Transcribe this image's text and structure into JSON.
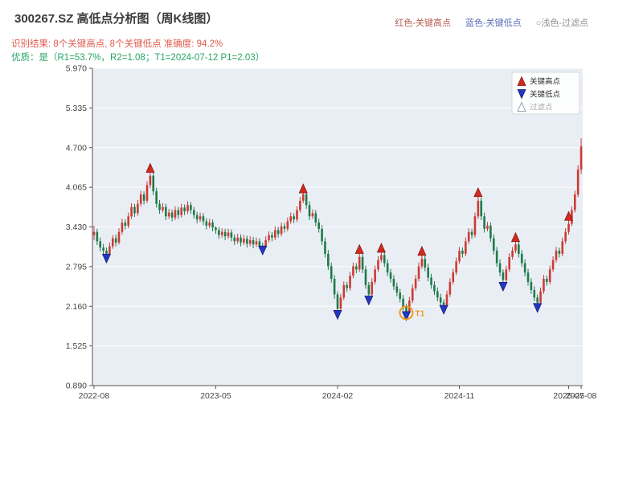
{
  "header": {
    "title": "300267.SZ 高低点分析图（周K线图）",
    "legend_top": [
      {
        "label": "红色-关键高点",
        "color": "#b85c52"
      },
      {
        "label": "蓝色-关键低点",
        "color": "#5a6fb5"
      },
      {
        "label": "○浅色-过滤点",
        "color": "#8f8f8f"
      }
    ],
    "result_line": "识别结果: 8个关键高点, 8个关键低点  准确度: 94.2%",
    "result_color": "#e05c4f",
    "quality_line": "优质：是（R1=53.7%，R2=1.08；T1=2024-07-12 P1=2.03）",
    "quality_color": "#27a567"
  },
  "analysis": {
    "key_high_count": 8,
    "key_low_count": 8,
    "accuracy_pct": 94.2,
    "r1": "53.7%",
    "r2": 1.08,
    "t1_date": "2024-07-12",
    "p1": 2.03
  },
  "chart_data": {
    "type": "candlestick",
    "title": "300267.SZ 周K线",
    "start_date": "2022-08-05",
    "interval_days": 7,
    "ylim": [
      0.89,
      5.97
    ],
    "ytick_labels": [
      "0.890",
      "1.525",
      "2.160",
      "2.795",
      "3.430",
      "4.065",
      "4.700",
      "5.335",
      "5.970"
    ],
    "yticks": [
      0.89,
      1.525,
      2.16,
      2.795,
      3.43,
      4.065,
      4.7,
      5.335,
      5.97
    ],
    "xticks": [
      {
        "week": 0,
        "label": "2022-08"
      },
      {
        "week": 39,
        "label": "2023-05"
      },
      {
        "week": 78,
        "label": "2024-02"
      },
      {
        "week": 117,
        "label": "2024-11"
      },
      {
        "week": 152,
        "label": "2025-07"
      },
      {
        "week": 156,
        "label": "2025-08"
      }
    ],
    "legend": [
      {
        "label": "关键高点",
        "symbol": "triangle-up",
        "color": "#d22a1e"
      },
      {
        "label": "关键低点",
        "symbol": "triangle-down",
        "color": "#2437c2"
      },
      {
        "label": "过滤点",
        "symbol": "triangle-up-outline",
        "color": "#aaaaaa"
      }
    ],
    "colors": {
      "plot_bg": "#e9eef5",
      "grid": "#ffffff",
      "axis": "#555555",
      "tick_label": "#444444",
      "up": "#cc3b33",
      "down": "#1f7a49",
      "key_high": "#d22a1e",
      "key_high_edge": "#7c120c",
      "key_low": "#2437c2",
      "key_low_edge": "#101a6e",
      "annotation": "#f0981e"
    },
    "candles": [
      [
        3.3,
        3.45,
        3.22,
        3.35
      ],
      [
        3.35,
        3.4,
        3.14,
        3.2
      ],
      [
        3.2,
        3.26,
        3.04,
        3.1
      ],
      [
        3.1,
        3.16,
        2.99,
        3.05
      ],
      [
        3.05,
        3.1,
        2.95,
        3.0
      ],
      [
        3.0,
        3.18,
        2.97,
        3.12
      ],
      [
        3.12,
        3.3,
        3.08,
        3.25
      ],
      [
        3.25,
        3.31,
        3.12,
        3.18
      ],
      [
        3.18,
        3.41,
        3.15,
        3.35
      ],
      [
        3.35,
        3.56,
        3.31,
        3.5
      ],
      [
        3.5,
        3.55,
        3.39,
        3.45
      ],
      [
        3.45,
        3.66,
        3.41,
        3.6
      ],
      [
        3.6,
        3.81,
        3.56,
        3.75
      ],
      [
        3.75,
        3.8,
        3.59,
        3.65
      ],
      [
        3.65,
        3.86,
        3.61,
        3.8
      ],
      [
        3.8,
        4.01,
        3.76,
        3.95
      ],
      [
        3.95,
        4.0,
        3.79,
        3.85
      ],
      [
        3.85,
        4.16,
        3.81,
        4.1
      ],
      [
        4.1,
        4.35,
        4.05,
        4.25
      ],
      [
        4.25,
        4.3,
        3.94,
        4.0
      ],
      [
        4.0,
        4.06,
        3.74,
        3.8
      ],
      [
        3.8,
        3.86,
        3.64,
        3.7
      ],
      [
        3.7,
        3.81,
        3.66,
        3.75
      ],
      [
        3.75,
        3.8,
        3.54,
        3.6
      ],
      [
        3.6,
        3.72,
        3.56,
        3.66
      ],
      [
        3.66,
        3.71,
        3.52,
        3.58
      ],
      [
        3.58,
        3.76,
        3.54,
        3.7
      ],
      [
        3.7,
        3.75,
        3.56,
        3.62
      ],
      [
        3.62,
        3.8,
        3.58,
        3.74
      ],
      [
        3.74,
        3.79,
        3.62,
        3.68
      ],
      [
        3.68,
        3.84,
        3.64,
        3.78
      ],
      [
        3.78,
        3.83,
        3.64,
        3.7
      ],
      [
        3.7,
        3.75,
        3.56,
        3.62
      ],
      [
        3.62,
        3.67,
        3.49,
        3.55
      ],
      [
        3.55,
        3.66,
        3.51,
        3.6
      ],
      [
        3.6,
        3.65,
        3.46,
        3.52
      ],
      [
        3.52,
        3.57,
        3.39,
        3.45
      ],
      [
        3.45,
        3.56,
        3.41,
        3.5
      ],
      [
        3.5,
        3.55,
        3.36,
        3.42
      ],
      [
        3.42,
        3.44,
        3.32,
        3.38
      ],
      [
        3.38,
        3.43,
        3.24,
        3.3
      ],
      [
        3.3,
        3.41,
        3.26,
        3.35
      ],
      [
        3.35,
        3.4,
        3.22,
        3.28
      ],
      [
        3.28,
        3.4,
        3.24,
        3.34
      ],
      [
        3.34,
        3.39,
        3.2,
        3.26
      ],
      [
        3.26,
        3.31,
        3.14,
        3.2
      ],
      [
        3.2,
        3.32,
        3.16,
        3.26
      ],
      [
        3.26,
        3.31,
        3.12,
        3.18
      ],
      [
        3.18,
        3.3,
        3.14,
        3.24
      ],
      [
        3.24,
        3.29,
        3.1,
        3.16
      ],
      [
        3.16,
        3.28,
        3.12,
        3.22
      ],
      [
        3.22,
        3.27,
        3.09,
        3.15
      ],
      [
        3.15,
        3.26,
        3.11,
        3.2
      ],
      [
        3.2,
        3.25,
        3.08,
        3.13
      ],
      [
        3.13,
        3.18,
        3.08,
        3.12
      ],
      [
        3.12,
        3.28,
        3.09,
        3.22
      ],
      [
        3.22,
        3.36,
        3.18,
        3.3
      ],
      [
        3.3,
        3.35,
        3.2,
        3.26
      ],
      [
        3.26,
        3.44,
        3.22,
        3.38
      ],
      [
        3.38,
        3.43,
        3.26,
        3.32
      ],
      [
        3.32,
        3.5,
        3.28,
        3.44
      ],
      [
        3.44,
        3.49,
        3.34,
        3.4
      ],
      [
        3.4,
        3.58,
        3.36,
        3.52
      ],
      [
        3.52,
        3.66,
        3.48,
        3.6
      ],
      [
        3.6,
        3.65,
        3.49,
        3.55
      ],
      [
        3.55,
        3.76,
        3.51,
        3.7
      ],
      [
        3.7,
        3.91,
        3.66,
        3.85
      ],
      [
        3.85,
        4.02,
        3.81,
        3.95
      ],
      [
        3.95,
        4.0,
        3.72,
        3.78
      ],
      [
        3.78,
        3.84,
        3.54,
        3.6
      ],
      [
        3.6,
        3.71,
        3.56,
        3.65
      ],
      [
        3.65,
        3.7,
        3.44,
        3.5
      ],
      [
        3.5,
        3.56,
        3.34,
        3.4
      ],
      [
        3.4,
        3.46,
        3.14,
        3.2
      ],
      [
        3.2,
        3.26,
        2.94,
        3.0
      ],
      [
        3.0,
        3.06,
        2.74,
        2.8
      ],
      [
        2.8,
        2.86,
        2.54,
        2.6
      ],
      [
        2.6,
        2.66,
        2.28,
        2.35
      ],
      [
        2.35,
        2.4,
        2.05,
        2.12
      ],
      [
        2.12,
        2.36,
        2.08,
        2.3
      ],
      [
        2.3,
        2.56,
        2.26,
        2.5
      ],
      [
        2.5,
        2.55,
        2.39,
        2.45
      ],
      [
        2.45,
        2.71,
        2.41,
        2.65
      ],
      [
        2.65,
        2.86,
        2.61,
        2.8
      ],
      [
        2.8,
        2.85,
        2.69,
        2.75
      ],
      [
        2.75,
        3.05,
        2.71,
        2.95
      ],
      [
        2.95,
        3.0,
        2.69,
        2.75
      ],
      [
        2.75,
        2.81,
        2.44,
        2.5
      ],
      [
        2.5,
        2.55,
        2.28,
        2.35
      ],
      [
        2.35,
        2.61,
        2.31,
        2.55
      ],
      [
        2.55,
        2.81,
        2.51,
        2.75
      ],
      [
        2.75,
        2.96,
        2.71,
        2.9
      ],
      [
        2.9,
        3.07,
        2.86,
        2.98
      ],
      [
        2.98,
        3.03,
        2.79,
        2.85
      ],
      [
        2.85,
        2.91,
        2.64,
        2.7
      ],
      [
        2.7,
        2.76,
        2.54,
        2.6
      ],
      [
        2.6,
        2.66,
        2.42,
        2.48
      ],
      [
        2.48,
        2.54,
        2.32,
        2.38
      ],
      [
        2.38,
        2.44,
        2.22,
        2.28
      ],
      [
        2.28,
        2.34,
        2.09,
        2.15
      ],
      [
        2.15,
        2.2,
        2.03,
        2.06
      ],
      [
        2.06,
        2.31,
        2.04,
        2.25
      ],
      [
        2.25,
        2.51,
        2.21,
        2.45
      ],
      [
        2.45,
        2.66,
        2.41,
        2.6
      ],
      [
        2.6,
        2.86,
        2.56,
        2.8
      ],
      [
        2.8,
        3.02,
        2.76,
        2.92
      ],
      [
        2.92,
        2.97,
        2.72,
        2.78
      ],
      [
        2.78,
        2.84,
        2.56,
        2.62
      ],
      [
        2.62,
        2.68,
        2.44,
        2.5
      ],
      [
        2.5,
        2.56,
        2.34,
        2.4
      ],
      [
        2.4,
        2.46,
        2.24,
        2.3
      ],
      [
        2.3,
        2.36,
        2.16,
        2.22
      ],
      [
        2.22,
        2.27,
        2.13,
        2.18
      ],
      [
        2.18,
        2.41,
        2.15,
        2.35
      ],
      [
        2.35,
        2.61,
        2.31,
        2.55
      ],
      [
        2.55,
        2.76,
        2.51,
        2.7
      ],
      [
        2.7,
        2.94,
        2.66,
        2.88
      ],
      [
        2.88,
        3.11,
        2.84,
        3.05
      ],
      [
        3.05,
        3.1,
        2.94,
        3.0
      ],
      [
        3.0,
        3.26,
        2.96,
        3.2
      ],
      [
        3.2,
        3.41,
        3.16,
        3.35
      ],
      [
        3.35,
        3.4,
        3.24,
        3.3
      ],
      [
        3.3,
        3.66,
        3.26,
        3.6
      ],
      [
        3.6,
        3.96,
        3.56,
        3.85
      ],
      [
        3.85,
        3.9,
        3.54,
        3.6
      ],
      [
        3.6,
        3.66,
        3.34,
        3.4
      ],
      [
        3.4,
        3.51,
        3.36,
        3.45
      ],
      [
        3.45,
        3.5,
        3.19,
        3.25
      ],
      [
        3.25,
        3.31,
        2.99,
        3.05
      ],
      [
        3.05,
        3.11,
        2.79,
        2.85
      ],
      [
        2.85,
        2.91,
        2.64,
        2.7
      ],
      [
        2.7,
        2.75,
        2.5,
        2.58
      ],
      [
        2.58,
        2.81,
        2.54,
        2.75
      ],
      [
        2.75,
        3.01,
        2.71,
        2.95
      ],
      [
        2.95,
        3.11,
        2.91,
        3.05
      ],
      [
        3.05,
        3.24,
        3.01,
        3.15
      ],
      [
        3.15,
        3.2,
        2.94,
        3.0
      ],
      [
        3.0,
        3.06,
        2.79,
        2.85
      ],
      [
        2.85,
        2.91,
        2.64,
        2.7
      ],
      [
        2.7,
        2.76,
        2.49,
        2.55
      ],
      [
        2.55,
        2.61,
        2.36,
        2.42
      ],
      [
        2.42,
        2.48,
        2.24,
        2.3
      ],
      [
        2.3,
        2.35,
        2.16,
        2.22
      ],
      [
        2.22,
        2.46,
        2.19,
        2.4
      ],
      [
        2.4,
        2.66,
        2.36,
        2.6
      ],
      [
        2.6,
        2.65,
        2.49,
        2.55
      ],
      [
        2.55,
        2.81,
        2.51,
        2.75
      ],
      [
        2.75,
        2.96,
        2.71,
        2.9
      ],
      [
        2.9,
        3.11,
        2.86,
        3.05
      ],
      [
        3.05,
        3.1,
        2.94,
        3.0
      ],
      [
        3.0,
        3.26,
        2.96,
        3.2
      ],
      [
        3.2,
        3.41,
        3.16,
        3.35
      ],
      [
        3.35,
        3.58,
        3.31,
        3.48
      ],
      [
        3.48,
        3.76,
        3.44,
        3.7
      ],
      [
        3.7,
        4.01,
        3.66,
        3.95
      ],
      [
        3.95,
        4.42,
        3.91,
        4.35
      ],
      [
        4.35,
        4.85,
        4.28,
        4.72
      ]
    ],
    "key_highs": [
      {
        "week": 18,
        "price": 4.35
      },
      {
        "week": 67,
        "price": 4.02
      },
      {
        "week": 85,
        "price": 3.05
      },
      {
        "week": 92,
        "price": 3.07
      },
      {
        "week": 105,
        "price": 3.02
      },
      {
        "week": 123,
        "price": 3.96
      },
      {
        "week": 135,
        "price": 3.24
      },
      {
        "week": 152,
        "price": 3.58
      }
    ],
    "key_lows": [
      {
        "week": 4,
        "price": 2.95
      },
      {
        "week": 54,
        "price": 3.08
      },
      {
        "week": 78,
        "price": 2.05
      },
      {
        "week": 88,
        "price": 2.28
      },
      {
        "week": 100,
        "price": 2.03
      },
      {
        "week": 112,
        "price": 2.13
      },
      {
        "week": 131,
        "price": 2.5
      },
      {
        "week": 142,
        "price": 2.16
      }
    ],
    "annotation": {
      "label": "T1",
      "week": 100,
      "price": 2.03
    }
  }
}
